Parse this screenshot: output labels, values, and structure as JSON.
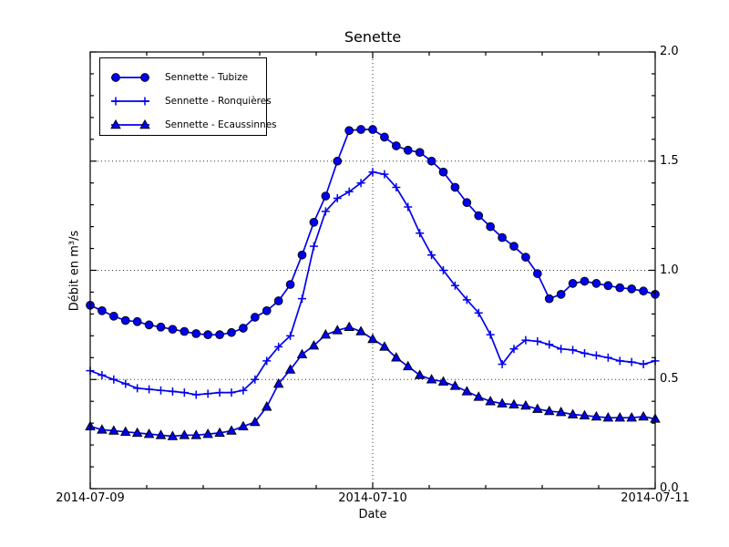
{
  "chart_data": {
    "type": "line",
    "title": "Senette",
    "xlabel": "Date",
    "ylabel": "Débit en m³/s",
    "x_axis": {
      "start_date": "2014-07-09",
      "end_date": "2014-07-11",
      "tick_labels": [
        "2014-07-09",
        "2014-07-10",
        "2014-07-11"
      ],
      "major_tick_hours": [
        0,
        24,
        48
      ],
      "minor_tick_interval_hours": 4.8,
      "unit": "hours since 2014-07-09 00:00"
    },
    "y_axis": {
      "ylim": [
        0.0,
        2.0
      ],
      "tick_labels": [
        "0.0",
        "0.5",
        "1.0",
        "1.5",
        "2.0"
      ],
      "tick_values": [
        0.0,
        0.5,
        1.0,
        1.5,
        2.0
      ],
      "minor_tick_step": 0.1,
      "labels_side": "right"
    },
    "grid": {
      "style": "dotted",
      "y_values": [
        0.5,
        1.0,
        1.5
      ],
      "x_values_hours": [
        24
      ]
    },
    "legend_position": "upper left",
    "line_color": "#0000ee",
    "marker_edge_color": "#000000",
    "x_hours": [
      0,
      1,
      2,
      3,
      4,
      5,
      6,
      7,
      8,
      9,
      10,
      11,
      12,
      13,
      14,
      15,
      16,
      17,
      18,
      19,
      20,
      21,
      22,
      23,
      24,
      25,
      26,
      27,
      28,
      29,
      30,
      31,
      32,
      33,
      34,
      35,
      36,
      37,
      38,
      39,
      40,
      41,
      42,
      43,
      44,
      45,
      46,
      47,
      48
    ],
    "series": [
      {
        "name": "Sennette - Tubize",
        "marker": "circle",
        "values": [
          0.84,
          0.815,
          0.79,
          0.77,
          0.765,
          0.75,
          0.74,
          0.73,
          0.72,
          0.71,
          0.705,
          0.705,
          0.715,
          0.735,
          0.785,
          0.815,
          0.86,
          0.935,
          1.07,
          1.22,
          1.34,
          1.5,
          1.64,
          1.645,
          1.645,
          1.61,
          1.57,
          1.55,
          1.54,
          1.5,
          1.45,
          1.38,
          1.31,
          1.25,
          1.2,
          1.15,
          1.11,
          1.06,
          0.985,
          0.87,
          0.89,
          0.94,
          0.95,
          0.94,
          0.93,
          0.92,
          0.915,
          0.905,
          0.89
        ]
      },
      {
        "name": "Sennette - Ronquières",
        "marker": "plus",
        "values": [
          0.54,
          0.52,
          0.5,
          0.48,
          0.46,
          0.455,
          0.45,
          0.445,
          0.44,
          0.43,
          0.435,
          0.44,
          0.44,
          0.45,
          0.5,
          0.585,
          0.65,
          0.7,
          0.87,
          1.11,
          1.27,
          1.33,
          1.36,
          1.4,
          1.45,
          1.44,
          1.38,
          1.29,
          1.17,
          1.07,
          1.0,
          0.93,
          0.865,
          0.805,
          0.705,
          0.57,
          0.64,
          0.68,
          0.675,
          0.66,
          0.64,
          0.635,
          0.62,
          0.61,
          0.6,
          0.585,
          0.58,
          0.57,
          0.585
        ]
      },
      {
        "name": "Sennette - Ecaussinnes",
        "marker": "triangle",
        "values": [
          0.285,
          0.27,
          0.265,
          0.26,
          0.255,
          0.25,
          0.245,
          0.24,
          0.245,
          0.245,
          0.25,
          0.255,
          0.265,
          0.285,
          0.305,
          0.375,
          0.48,
          0.545,
          0.615,
          0.655,
          0.705,
          0.725,
          0.74,
          0.72,
          0.685,
          0.65,
          0.6,
          0.56,
          0.52,
          0.5,
          0.49,
          0.47,
          0.445,
          0.42,
          0.4,
          0.39,
          0.385,
          0.38,
          0.365,
          0.355,
          0.35,
          0.34,
          0.335,
          0.33,
          0.325,
          0.325,
          0.325,
          0.33,
          0.32
        ]
      }
    ]
  }
}
